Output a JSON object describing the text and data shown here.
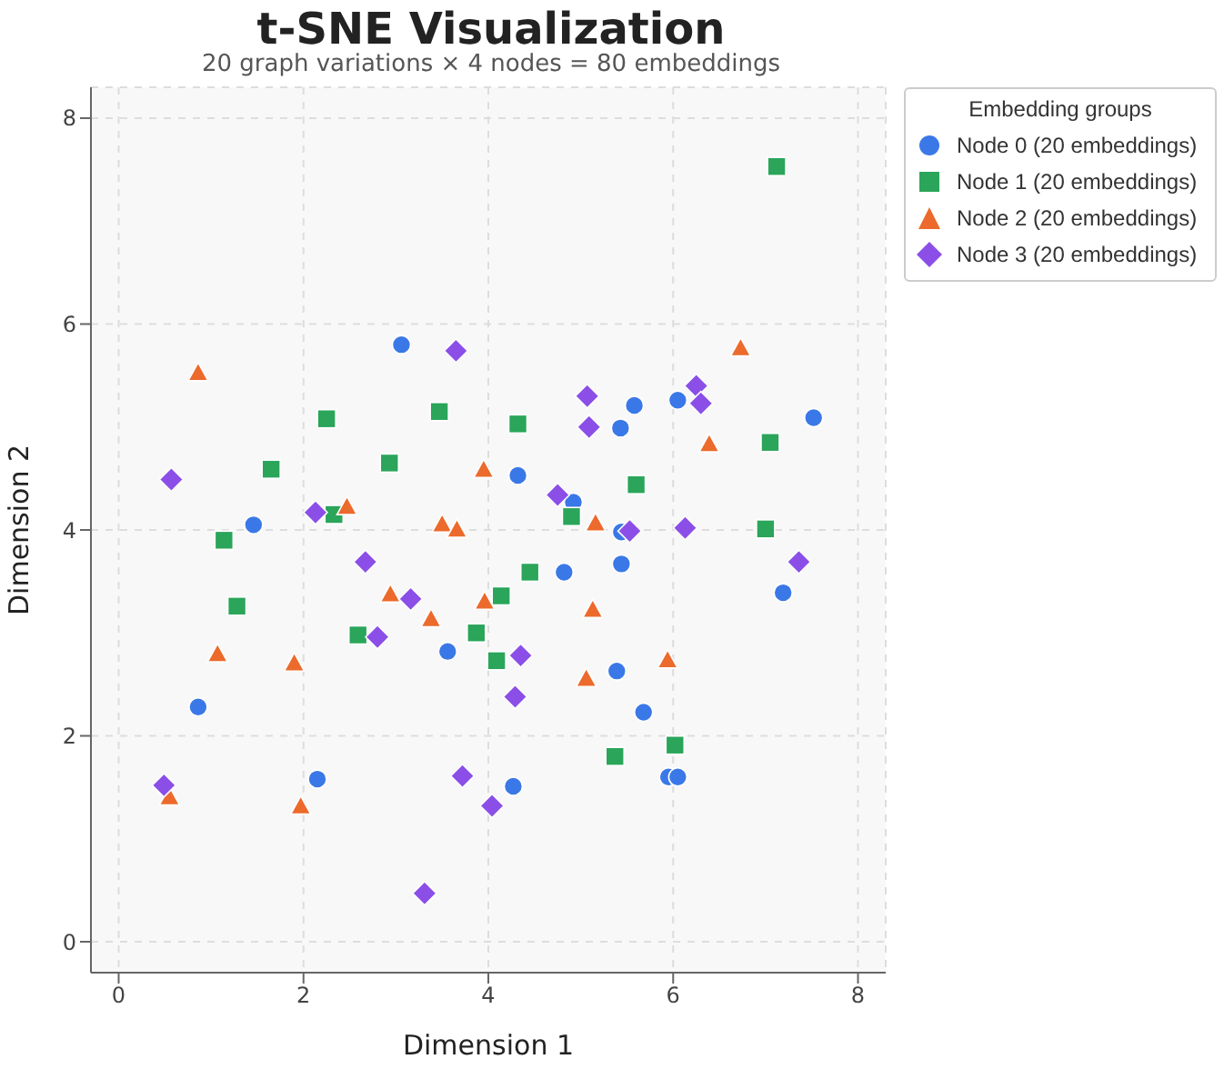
{
  "chart_data": {
    "type": "scatter",
    "title": "t-SNE Visualization",
    "subtitle": "20 graph variations × 4 nodes = 80 embeddings",
    "xlabel": "Dimension 1",
    "ylabel": "Dimension 2",
    "legend_title": "Embedding groups",
    "legend": "top right",
    "grid": true,
    "xlim": [
      -0.3,
      8.3
    ],
    "xticks": [
      0,
      2,
      4,
      6,
      8
    ],
    "ylim": [
      -0.3,
      8.3
    ],
    "yticks": [
      0,
      2,
      4,
      6,
      8
    ],
    "series": [
      {
        "name": "Node 0 (20 embeddings)",
        "color": "#3b78e7",
        "marker": "circle",
        "x": [
          3.06,
          1.46,
          3.56,
          0.86,
          2.15,
          5.58,
          6.05,
          5.43,
          7.52,
          4.32,
          4.92,
          5.44,
          4.82,
          5.44,
          7.19,
          5.39,
          5.68,
          5.95,
          6.05,
          4.27
        ],
        "values": [
          5.8,
          4.05,
          2.82,
          2.28,
          1.58,
          5.21,
          5.26,
          4.99,
          5.09,
          4.53,
          4.27,
          3.98,
          3.59,
          3.67,
          3.39,
          2.63,
          2.23,
          1.6,
          1.6,
          1.51
        ]
      },
      {
        "name": "Node 1 (20 embeddings)",
        "color": "#2aa55a",
        "marker": "square",
        "x": [
          7.12,
          4.32,
          7.05,
          5.6,
          4.9,
          7.0,
          2.25,
          3.47,
          1.65,
          2.93,
          2.33,
          1.14,
          1.28,
          2.59,
          3.87,
          4.45,
          4.14,
          4.09,
          5.37,
          6.02
        ],
        "values": [
          7.53,
          5.03,
          4.85,
          4.44,
          4.13,
          4.01,
          5.08,
          5.15,
          4.59,
          4.65,
          4.15,
          3.9,
          3.26,
          2.98,
          3.0,
          3.59,
          3.36,
          2.73,
          1.8,
          1.91
        ]
      },
      {
        "name": "Node 2 (20 embeddings)",
        "color": "#ec6a2c",
        "marker": "triangle",
        "x": [
          6.73,
          6.39,
          3.95,
          5.16,
          0.86,
          2.47,
          3.5,
          3.66,
          2.94,
          3.38,
          3.96,
          1.07,
          1.9,
          0.55,
          1.97,
          5.13,
          5.06,
          5.94
        ],
        "values": [
          5.76,
          4.83,
          4.58,
          4.06,
          5.52,
          4.22,
          4.05,
          4.0,
          3.37,
          3.13,
          3.3,
          2.79,
          2.7,
          1.4,
          1.31,
          3.22,
          2.55,
          2.73
        ]
      },
      {
        "name": "Node 3 (20 embeddings)",
        "color": "#8b4fe8",
        "marker": "diamond",
        "x": [
          3.65,
          0.57,
          2.13,
          5.07,
          5.09,
          6.25,
          6.3,
          4.75,
          5.53,
          6.13,
          7.36,
          2.67,
          3.16,
          2.8,
          0.49,
          3.72,
          3.31,
          4.04,
          4.35,
          4.29
        ],
        "values": [
          5.74,
          4.49,
          4.17,
          5.3,
          5.0,
          5.4,
          5.23,
          4.34,
          3.99,
          4.02,
          3.69,
          3.69,
          3.33,
          2.96,
          1.52,
          1.61,
          0.47,
          1.32,
          2.78,
          2.38
        ]
      }
    ]
  }
}
